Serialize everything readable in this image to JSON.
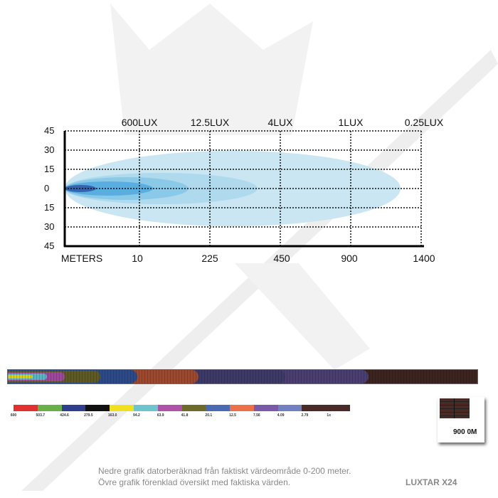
{
  "diagram": {
    "y_ticks": [
      "45",
      "30",
      "15",
      "0",
      "15",
      "30",
      "45"
    ],
    "lux_labels": [
      "600LUX",
      "12.5LUX",
      "4LUX",
      "1LUX",
      "0.25LUX"
    ],
    "x_axis_title": "METERS",
    "x_ticks": [
      "10",
      "225",
      "450",
      "900",
      "1400"
    ],
    "beam_colors": [
      "#c9e6f2",
      "#a6d5ec",
      "#7ec3e6",
      "#4aa4dc",
      "#2a4a9c"
    ]
  },
  "simulation": {
    "legend": [
      {
        "label": "600",
        "color": "#e03030"
      },
      {
        "label": "503.7",
        "color": "#6ab04a"
      },
      {
        "label": "424.6",
        "color": "#2d3f8c"
      },
      {
        "label": "279.5",
        "color": "#111111"
      },
      {
        "label": "163.0",
        "color": "#f0e020"
      },
      {
        "label": "94.2",
        "color": "#6cc4cc"
      },
      {
        "label": "63.9",
        "color": "#b052a8"
      },
      {
        "label": "41.8",
        "color": "#6e6a2a"
      },
      {
        "label": "20.1",
        "color": "#4a6ab4"
      },
      {
        "label": "12.5",
        "color": "#ec7048"
      },
      {
        "label": "7.56",
        "color": "#7a5aa8"
      },
      {
        "label": "4.09",
        "color": "#7080c0"
      },
      {
        "label": "2.79",
        "color": "#4a2a24"
      },
      {
        "label": "1x",
        "color": "#4a2a24"
      }
    ],
    "distance_label": "900 0M"
  },
  "notes": {
    "line1": "Nedre grafik datorberäknad från faktiskt värdeområde 0-200 meter.",
    "line2": "Övre grafik förenklad översikt med faktiska värden.",
    "product": "LUXTAR X24"
  }
}
